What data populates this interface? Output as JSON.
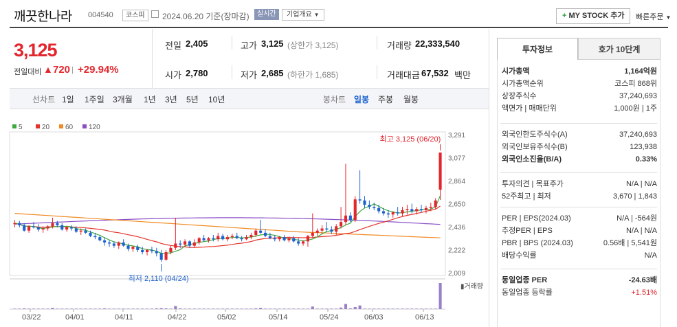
{
  "header": {
    "stock_name": "깨끗한나라",
    "stock_code": "004540",
    "market": "코스피",
    "date": "2024.06.20 기준(장마감)",
    "realtime": "실시간",
    "company_info": "기업개요",
    "mystock_btn": "MY STOCK 추가",
    "quick_order": "빠른주문"
  },
  "price": {
    "current": "3,125",
    "change_label": "전일대비",
    "change": "720",
    "change_pct": "+29.94%"
  },
  "stats": {
    "prev_label": "전일",
    "prev": "2,405",
    "open_label": "시가",
    "open": "2,780",
    "high_label": "고가",
    "high": "3,125",
    "upper_limit": "(상한가 3,125)",
    "low_label": "저가",
    "low": "2,685",
    "lower_limit": "(하한가 1,685)",
    "volume_label": "거래량",
    "volume": "22,333,540",
    "amount_label": "거래대금",
    "amount": "67,532",
    "amount_unit": "백만"
  },
  "periods": {
    "line_label": "선차트",
    "line": [
      "1일",
      "1주일",
      "3개월",
      "1년",
      "3년",
      "5년",
      "10년"
    ],
    "candle_label": "봉차트",
    "candle": [
      "일봉",
      "주봉",
      "월봉"
    ]
  },
  "panel": {
    "tabs": [
      "투자정보",
      "호가 10단계"
    ],
    "rows1": [
      {
        "label": "시가총액",
        "value": "1,164억원"
      },
      {
        "label": "시가총액순위",
        "value": "코스피 868위"
      },
      {
        "label": "상장주식수",
        "value": "37,240,693"
      },
      {
        "label": "액면가 | 매매단위",
        "value": "1,000원 | 1주"
      }
    ],
    "rows2": [
      {
        "label": "외국인한도주식수(A)",
        "value": "37,240,693"
      },
      {
        "label": "외국인보유주식수(B)",
        "value": "123,938"
      },
      {
        "label": "외국인소진율(B/A)",
        "value": "0.33%"
      }
    ],
    "rows3": [
      {
        "label": "투자의견 | 목표주가",
        "value": "N/A | N/A"
      },
      {
        "label": "52주최고 | 최저",
        "value": "3,670 | 1,843"
      }
    ],
    "rows4": [
      {
        "label": "PER | EPS(2024.03)",
        "value": "N/A | -564원"
      },
      {
        "label": "추정PER | EPS",
        "value": "N/A | N/A"
      },
      {
        "label": "PBR | BPS (2024.03)",
        "value": "0.56배 | 5,541원"
      },
      {
        "label": "배당수익률",
        "value": "N/A"
      }
    ],
    "rows5": [
      {
        "label": "동일업종 PER",
        "value": "-24.63배"
      },
      {
        "label": "동일업종 등락률",
        "value": "+1.51%"
      }
    ]
  },
  "chart_data": {
    "type": "candlestick",
    "legend": [
      {
        "name": "5",
        "color": "#3cab3c"
      },
      {
        "name": "20",
        "color": "#e5332a"
      },
      {
        "name": "60",
        "color": "#f08a24"
      },
      {
        "name": "120",
        "color": "#8a4fc7"
      }
    ],
    "yticks": [
      "3,291",
      "3,077",
      "2,864",
      "2,650",
      "2,436",
      "2,222",
      "2,009"
    ],
    "ylim": [
      2009,
      3291
    ],
    "xticks": [
      "03/22",
      "04/01",
      "04/11",
      "04/22",
      "05/02",
      "05/14",
      "05/24",
      "06/03",
      "06/13"
    ],
    "annot_high": "최고 3,125 (06/20)",
    "annot_low": "최저 2,110 (04/24)",
    "volume_label": "거래량",
    "candles": [
      [
        2460,
        2500,
        2430,
        2470
      ],
      [
        2470,
        2490,
        2430,
        2450
      ],
      [
        2450,
        2470,
        2390,
        2400
      ],
      [
        2400,
        2450,
        2380,
        2440
      ],
      [
        2440,
        2480,
        2420,
        2430
      ],
      [
        2430,
        2460,
        2390,
        2410
      ],
      [
        2410,
        2440,
        2380,
        2420
      ],
      [
        2420,
        2450,
        2400,
        2440
      ],
      [
        2440,
        2520,
        2420,
        2470
      ],
      [
        2470,
        2490,
        2430,
        2450
      ],
      [
        2450,
        2470,
        2400,
        2410
      ],
      [
        2410,
        2440,
        2390,
        2430
      ],
      [
        2430,
        2450,
        2400,
        2420
      ],
      [
        2420,
        2440,
        2380,
        2390
      ],
      [
        2390,
        2420,
        2360,
        2400
      ],
      [
        2400,
        2420,
        2370,
        2380
      ],
      [
        2380,
        2400,
        2340,
        2350
      ],
      [
        2350,
        2380,
        2320,
        2340
      ],
      [
        2340,
        2360,
        2300,
        2310
      ],
      [
        2310,
        2340,
        2260,
        2290
      ],
      [
        2290,
        2310,
        2250,
        2280
      ],
      [
        2280,
        2300,
        2240,
        2260
      ],
      [
        2260,
        2300,
        2230,
        2290
      ],
      [
        2290,
        2320,
        2250,
        2260
      ],
      [
        2260,
        2280,
        2210,
        2230
      ],
      [
        2230,
        2260,
        2200,
        2250
      ],
      [
        2250,
        2270,
        2200,
        2220
      ],
      [
        2220,
        2250,
        2180,
        2200
      ],
      [
        2200,
        2230,
        2170,
        2220
      ],
      [
        2220,
        2250,
        2190,
        2210
      ],
      [
        2210,
        2240,
        2160,
        2190
      ],
      [
        2190,
        2220,
        2110,
        2130
      ],
      [
        2130,
        2220,
        2120,
        2200
      ],
      [
        2200,
        2260,
        2180,
        2240
      ],
      [
        2240,
        2520,
        2220,
        2280
      ],
      [
        2280,
        2310,
        2240,
        2270
      ],
      [
        2270,
        2320,
        2250,
        2300
      ],
      [
        2300,
        2310,
        2240,
        2260
      ],
      [
        2260,
        2320,
        2240,
        2290
      ],
      [
        2290,
        2340,
        2270,
        2330
      ],
      [
        2330,
        2360,
        2300,
        2310
      ],
      [
        2310,
        2340,
        2290,
        2330
      ],
      [
        2330,
        2360,
        2300,
        2320
      ],
      [
        2320,
        2380,
        2300,
        2350
      ],
      [
        2350,
        2370,
        2310,
        2320
      ],
      [
        2320,
        2360,
        2300,
        2340
      ],
      [
        2340,
        2370,
        2320,
        2350
      ],
      [
        2350,
        2380,
        2320,
        2330
      ],
      [
        2330,
        2350,
        2300,
        2320
      ],
      [
        2320,
        2360,
        2310,
        2340
      ],
      [
        2340,
        2380,
        2320,
        2360
      ],
      [
        2360,
        2420,
        2340,
        2400
      ],
      [
        2400,
        2500,
        2370,
        2380
      ],
      [
        2380,
        2410,
        2340,
        2350
      ],
      [
        2350,
        2380,
        2320,
        2330
      ],
      [
        2330,
        2360,
        2300,
        2320
      ],
      [
        2320,
        2350,
        2300,
        2340
      ],
      [
        2340,
        2360,
        2300,
        2310
      ],
      [
        2310,
        2340,
        2290,
        2330
      ],
      [
        2330,
        2350,
        2290,
        2300
      ],
      [
        2300,
        2330,
        2260,
        2280
      ],
      [
        2280,
        2310,
        2260,
        2300
      ],
      [
        2300,
        2360,
        2250,
        2350
      ],
      [
        2350,
        2560,
        2330,
        2380
      ],
      [
        2380,
        2420,
        2350,
        2400
      ],
      [
        2400,
        2450,
        2370,
        2420
      ],
      [
        2420,
        2480,
        2390,
        2410
      ],
      [
        2410,
        2440,
        2370,
        2390
      ],
      [
        2390,
        2460,
        2360,
        2440
      ],
      [
        2440,
        2620,
        2420,
        2480
      ],
      [
        2480,
        3020,
        2450,
        2540
      ],
      [
        2540,
        2570,
        2480,
        2500
      ],
      [
        2500,
        2720,
        2480,
        2690
      ],
      [
        2690,
        2960,
        2650,
        2680
      ],
      [
        2680,
        2720,
        2610,
        2640
      ],
      [
        2640,
        2680,
        2600,
        2620
      ],
      [
        2620,
        2660,
        2590,
        2610
      ],
      [
        2610,
        2640,
        2560,
        2580
      ],
      [
        2580,
        2610,
        2540,
        2560
      ],
      [
        2560,
        2590,
        2520,
        2550
      ],
      [
        2550,
        2580,
        2520,
        2570
      ],
      [
        2570,
        2620,
        2540,
        2560
      ],
      [
        2560,
        2620,
        2530,
        2590
      ],
      [
        2590,
        2640,
        2550,
        2600
      ],
      [
        2600,
        2650,
        2560,
        2580
      ],
      [
        2580,
        2620,
        2550,
        2600
      ],
      [
        2600,
        2640,
        2570,
        2590
      ],
      [
        2590,
        2630,
        2560,
        2610
      ],
      [
        2610,
        2660,
        2580,
        2620
      ],
      [
        2620,
        2700,
        2600,
        2680
      ],
      [
        2780,
        3125,
        2685,
        3125
      ]
    ],
    "volumes": [
      2,
      2,
      3,
      2,
      2,
      2,
      2,
      2,
      5,
      2,
      2,
      2,
      2,
      2,
      2,
      2,
      2,
      2,
      2,
      3,
      2,
      2,
      2,
      2,
      2,
      2,
      2,
      2,
      2,
      2,
      3,
      4,
      3,
      2,
      12,
      3,
      2,
      2,
      2,
      2,
      2,
      2,
      2,
      2,
      2,
      2,
      2,
      2,
      2,
      2,
      2,
      3,
      5,
      2,
      2,
      2,
      2,
      2,
      2,
      2,
      2,
      2,
      2,
      10,
      2,
      2,
      2,
      2,
      2,
      6,
      20,
      3,
      8,
      14,
      2,
      2,
      2,
      2,
      2,
      2,
      2,
      2,
      2,
      2,
      2,
      2,
      2,
      2,
      2,
      2,
      100
    ]
  }
}
